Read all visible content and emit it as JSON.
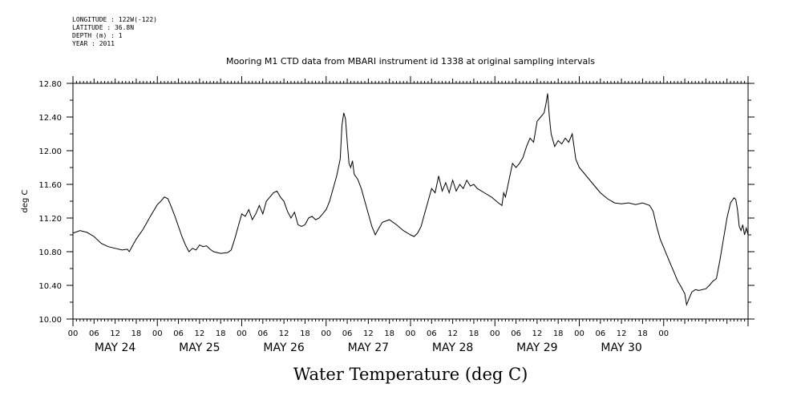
{
  "header": {
    "meta": [
      "LONGITUDE : 122W(-122)",
      "LATITUDE : 36.8N",
      "DEPTH (m) : 1",
      "YEAR : 2011"
    ]
  },
  "chart_data": {
    "type": "line",
    "title": "Mooring M1 CTD data from MBARI instrument id 1338 at original sampling intervals",
    "xlabel": "Water Temperature (deg C)",
    "ylabel": "deg C",
    "ylim": [
      10.0,
      12.8
    ],
    "yticks": [
      "10.00",
      "10.40",
      "10.80",
      "11.20",
      "11.60",
      "12.00",
      "12.40",
      "12.80"
    ],
    "x_hour_labels": [
      "00",
      "06",
      "12",
      "18",
      "00",
      "06",
      "12",
      "18",
      "00",
      "06",
      "12",
      "18",
      "00",
      "06",
      "12",
      "18",
      "00",
      "06",
      "12",
      "18",
      "00",
      "06",
      "12",
      "18",
      "00",
      "06",
      "12",
      "18",
      "00"
    ],
    "day_labels": [
      "MAY 24",
      "MAY 25",
      "MAY 26",
      "MAY 27",
      "MAY 28",
      "MAY 29",
      "MAY 30"
    ],
    "x_unit": "hours since 2011-05-24 00:00",
    "series": [
      {
        "points": [
          [
            0,
            11.02
          ],
          [
            2,
            11.05
          ],
          [
            4,
            11.03
          ],
          [
            6,
            10.98
          ],
          [
            8,
            10.9
          ],
          [
            10,
            10.86
          ],
          [
            12,
            10.84
          ],
          [
            14,
            10.82
          ],
          [
            15.5,
            10.83
          ],
          [
            16,
            10.8
          ],
          [
            18,
            10.95
          ],
          [
            20,
            11.07
          ],
          [
            22,
            11.22
          ],
          [
            24,
            11.36
          ],
          [
            25,
            11.4
          ],
          [
            26,
            11.45
          ],
          [
            27,
            11.43
          ],
          [
            28,
            11.33
          ],
          [
            29,
            11.22
          ],
          [
            30,
            11.1
          ],
          [
            31,
            10.98
          ],
          [
            32,
            10.88
          ],
          [
            33,
            10.8
          ],
          [
            34,
            10.84
          ],
          [
            35,
            10.82
          ],
          [
            36,
            10.88
          ],
          [
            37,
            10.86
          ],
          [
            38,
            10.87
          ],
          [
            39,
            10.83
          ],
          [
            40,
            10.8
          ],
          [
            42,
            10.78
          ],
          [
            44,
            10.79
          ],
          [
            45,
            10.82
          ],
          [
            46,
            10.95
          ],
          [
            47,
            11.1
          ],
          [
            48,
            11.25
          ],
          [
            49,
            11.22
          ],
          [
            50,
            11.3
          ],
          [
            51,
            11.18
          ],
          [
            52,
            11.25
          ],
          [
            53,
            11.35
          ],
          [
            54,
            11.25
          ],
          [
            55,
            11.4
          ],
          [
            56,
            11.45
          ],
          [
            57,
            11.5
          ],
          [
            58,
            11.52
          ],
          [
            59,
            11.45
          ],
          [
            60,
            11.4
          ],
          [
            61,
            11.28
          ],
          [
            62,
            11.2
          ],
          [
            63,
            11.27
          ],
          [
            64,
            11.12
          ],
          [
            65,
            11.1
          ],
          [
            66,
            11.12
          ],
          [
            67,
            11.2
          ],
          [
            68,
            11.22
          ],
          [
            69,
            11.18
          ],
          [
            70,
            11.2
          ],
          [
            71,
            11.25
          ],
          [
            72,
            11.3
          ],
          [
            73,
            11.4
          ],
          [
            74,
            11.55
          ],
          [
            75,
            11.7
          ],
          [
            76,
            11.9
          ],
          [
            76.5,
            12.3
          ],
          [
            77,
            12.45
          ],
          [
            77.5,
            12.38
          ],
          [
            78,
            12.1
          ],
          [
            78.5,
            11.85
          ],
          [
            79,
            11.8
          ],
          [
            79.5,
            11.88
          ],
          [
            80,
            11.72
          ],
          [
            81,
            11.66
          ],
          [
            82,
            11.55
          ],
          [
            83,
            11.4
          ],
          [
            84,
            11.25
          ],
          [
            85,
            11.1
          ],
          [
            86,
            11.0
          ],
          [
            87,
            11.08
          ],
          [
            88,
            11.15
          ],
          [
            90,
            11.18
          ],
          [
            92,
            11.12
          ],
          [
            94,
            11.05
          ],
          [
            96,
            11.0
          ],
          [
            97,
            10.98
          ],
          [
            98,
            11.02
          ],
          [
            99,
            11.1
          ],
          [
            100,
            11.25
          ],
          [
            101,
            11.4
          ],
          [
            102,
            11.55
          ],
          [
            103,
            11.5
          ],
          [
            104,
            11.7
          ],
          [
            105,
            11.52
          ],
          [
            106,
            11.62
          ],
          [
            107,
            11.5
          ],
          [
            108,
            11.65
          ],
          [
            109,
            11.52
          ],
          [
            110,
            11.6
          ],
          [
            111,
            11.55
          ],
          [
            112,
            11.65
          ],
          [
            113,
            11.58
          ],
          [
            114,
            11.6
          ],
          [
            115,
            11.55
          ],
          [
            117,
            11.5
          ],
          [
            119,
            11.45
          ],
          [
            121,
            11.38
          ],
          [
            122,
            11.35
          ],
          [
            122.5,
            11.5
          ],
          [
            123,
            11.45
          ],
          [
            124,
            11.65
          ],
          [
            125,
            11.85
          ],
          [
            126,
            11.8
          ],
          [
            127,
            11.85
          ],
          [
            128,
            11.92
          ],
          [
            129,
            12.05
          ],
          [
            130,
            12.15
          ],
          [
            131,
            12.1
          ],
          [
            132,
            12.35
          ],
          [
            133,
            12.4
          ],
          [
            134,
            12.45
          ],
          [
            134.5,
            12.55
          ],
          [
            135,
            12.68
          ],
          [
            135.5,
            12.4
          ],
          [
            136,
            12.2
          ],
          [
            137,
            12.05
          ],
          [
            138,
            12.12
          ],
          [
            139,
            12.08
          ],
          [
            140,
            12.15
          ],
          [
            141,
            12.1
          ],
          [
            142,
            12.2
          ],
          [
            142.5,
            12.05
          ],
          [
            143,
            11.9
          ],
          [
            144,
            11.8
          ],
          [
            146,
            11.7
          ],
          [
            148,
            11.6
          ],
          [
            150,
            11.5
          ],
          [
            152,
            11.43
          ],
          [
            154,
            11.38
          ],
          [
            156,
            11.37
          ],
          [
            158,
            11.38
          ],
          [
            160,
            11.36
          ],
          [
            162,
            11.38
          ],
          [
            164,
            11.35
          ],
          [
            165,
            11.28
          ],
          [
            166,
            11.1
          ],
          [
            167,
            10.95
          ],
          [
            168,
            10.85
          ],
          [
            169,
            10.75
          ],
          [
            170,
            10.65
          ],
          [
            171,
            10.55
          ],
          [
            172,
            10.45
          ],
          [
            173,
            10.38
          ],
          [
            174,
            10.3
          ],
          [
            174.5,
            10.17
          ],
          [
            175,
            10.22
          ],
          [
            176,
            10.32
          ],
          [
            177,
            10.35
          ],
          [
            178,
            10.34
          ],
          [
            180,
            10.36
          ],
          [
            181,
            10.4
          ],
          [
            182,
            10.45
          ],
          [
            183,
            10.48
          ],
          [
            184,
            10.7
          ],
          [
            185,
            10.95
          ],
          [
            186,
            11.2
          ],
          [
            187,
            11.38
          ],
          [
            188,
            11.44
          ],
          [
            188.5,
            11.42
          ],
          [
            189,
            11.3
          ],
          [
            189.5,
            11.1
          ],
          [
            190,
            11.05
          ],
          [
            190.5,
            11.12
          ],
          [
            191,
            11.0
          ],
          [
            191.5,
            11.08
          ],
          [
            192,
            11.0
          ]
        ]
      }
    ],
    "grid": false,
    "legend": "none"
  }
}
